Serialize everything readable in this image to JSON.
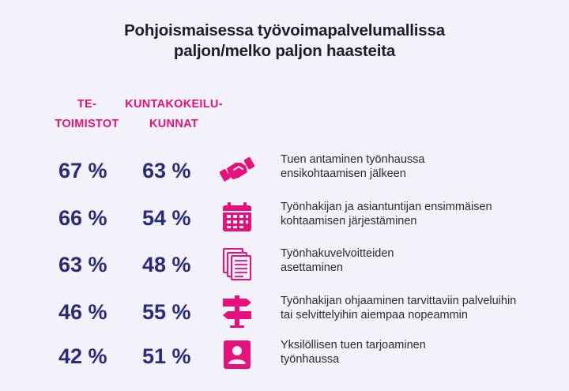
{
  "title": [
    "Pohjoismaisessa työvoimapalvelumallissa",
    "paljon/melko paljon haasteita"
  ],
  "colors": {
    "accent": "#e6117a",
    "value": "#2b2c78",
    "background": "#f3f1f9"
  },
  "chart_data": {
    "type": "table",
    "title": "Pohjoismaisessa työvoimapalvelumallissa paljon/melko paljon haasteita",
    "columns": [
      {
        "label": [
          "TE-",
          "TOIMISTOT"
        ]
      },
      {
        "label": [
          "KUNTAKOKEILU-",
          "KUNNAT"
        ]
      }
    ],
    "rows": [
      {
        "icon": "handshake-icon",
        "label": [
          "Tuen antaminen työnhaussa",
          "ensikohtaamisen jälkeen"
        ],
        "values": [
          "67 %",
          "63 %"
        ]
      },
      {
        "icon": "calendar-icon",
        "label": [
          "Työnhakijan ja asiantuntijan ensimmäisen",
          "kohtaamisen järjestäminen"
        ],
        "values": [
          "66 %",
          "54 %"
        ]
      },
      {
        "icon": "documents-icon",
        "label": [
          "Työnhakuvelvoitteiden",
          "asettaminen"
        ],
        "values": [
          "63 %",
          "48 %"
        ]
      },
      {
        "icon": "signpost-icon",
        "label": [
          "Työnhakijan ohjaaminen tarvittaviin palveluihin",
          "tai selvittelyihin aiempaa nopeammin"
        ],
        "values": [
          "46 %",
          "55 %"
        ]
      },
      {
        "icon": "user-badge-icon",
        "label": [
          "Yksilöllisen tuen tarjoaminen",
          "työnhaussa"
        ],
        "values": [
          "42 %",
          "51 %"
        ]
      }
    ]
  }
}
